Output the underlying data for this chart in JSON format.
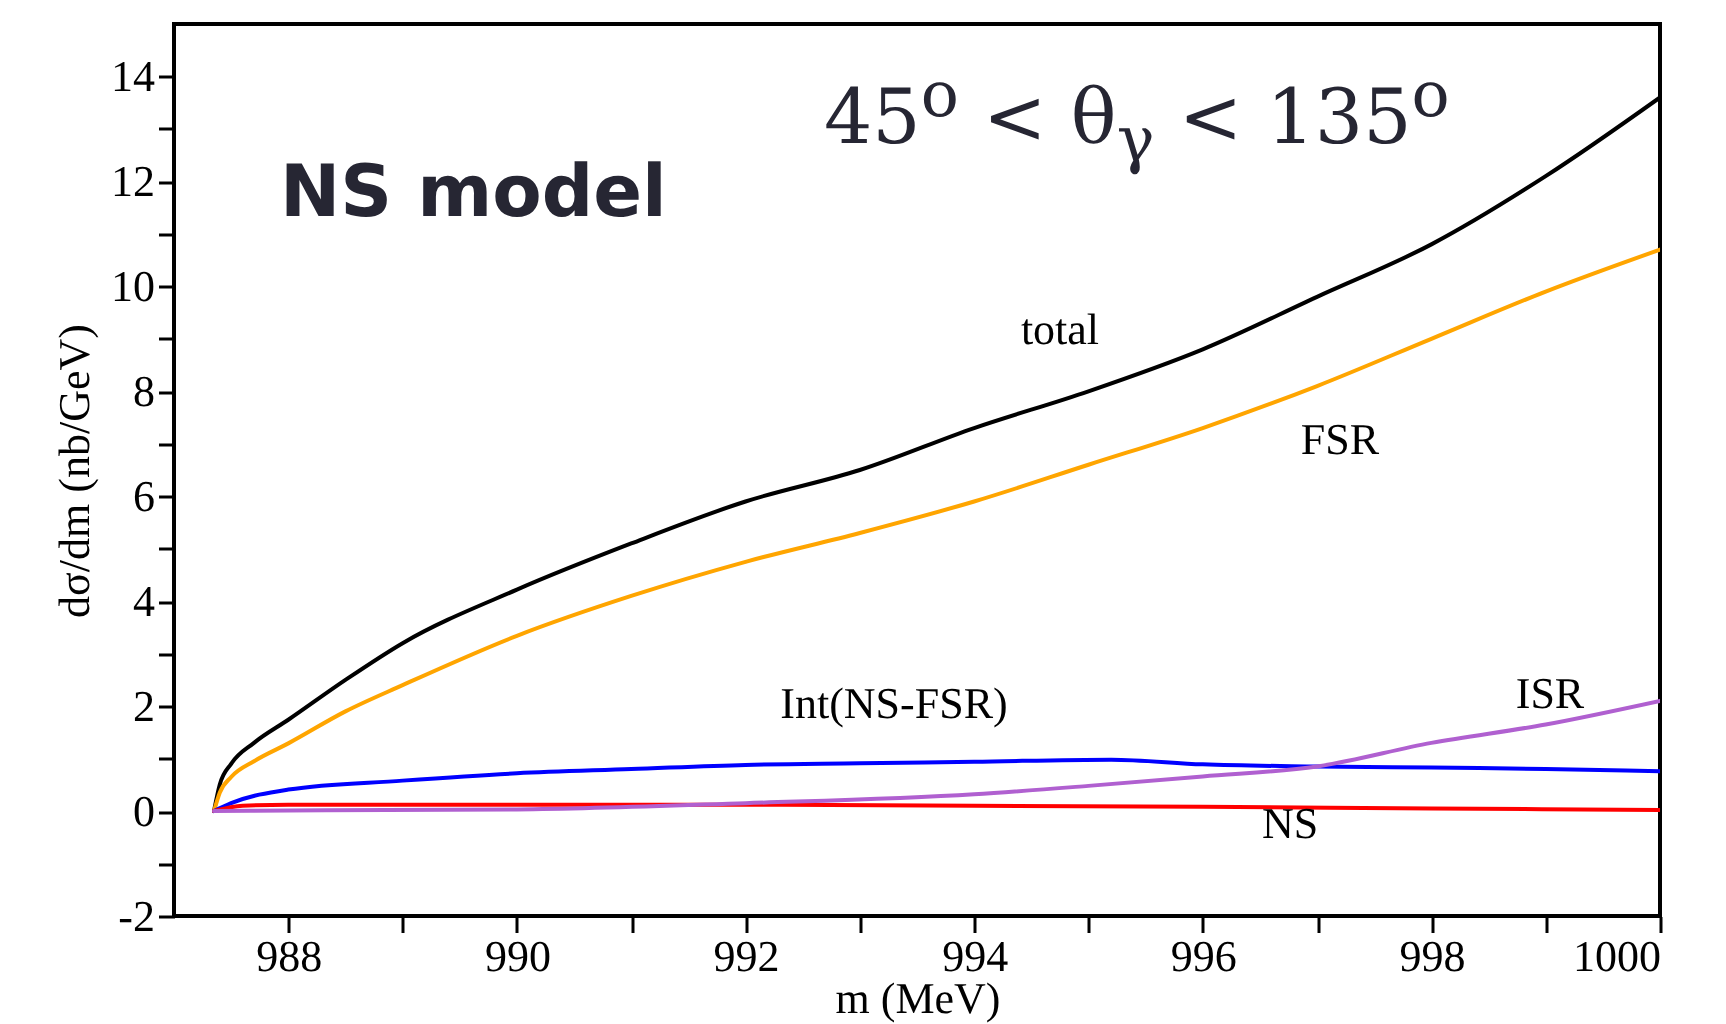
{
  "chart_data": {
    "type": "line",
    "xlabel": "m (MeV)",
    "ylabel": "dσ/dm (nb/GeV)",
    "xlim": [
      987,
      1000
    ],
    "ylim": [
      -2,
      15
    ],
    "xticks": [
      988,
      {
        "value": 989,
        "label": null
      },
      990,
      {
        "value": 991,
        "label": null
      },
      992,
      {
        "value": 993,
        "label": null
      },
      994,
      {
        "value": 995,
        "label": null
      },
      996,
      {
        "value": 997,
        "label": null
      },
      998,
      {
        "value": 999,
        "label": null
      },
      1000
    ],
    "yticks": [
      -2,
      {
        "value": -1,
        "label": null
      },
      0,
      {
        "value": 1,
        "label": null
      },
      2,
      {
        "value": 3,
        "label": null
      },
      4,
      {
        "value": 5,
        "label": null
      },
      6,
      {
        "value": 7,
        "label": null
      },
      8,
      {
        "value": 9,
        "label": null
      },
      10,
      {
        "value": 11,
        "label": null
      },
      12,
      {
        "value": 13,
        "label": null
      },
      14
    ],
    "grid": false,
    "marker": "none",
    "line_style": "solid",
    "series": [
      {
        "color": "#000000",
        "x": [
          987.35,
          987.4,
          987.5,
          987.7,
          988,
          988.5,
          989,
          990,
          991,
          992,
          993,
          994,
          995,
          996,
          997,
          998,
          999,
          1000
        ],
        "values": [
          0,
          0.5,
          0.9,
          1.3,
          1.74,
          2.5,
          3.2,
          4.22,
          5.1,
          5.9,
          6.5,
          7.3,
          8.0,
          8.8,
          9.8,
          10.8,
          12.1,
          13.6
        ]
      },
      {
        "color": "#ffa500",
        "x": [
          987.35,
          987.4,
          987.5,
          987.7,
          988,
          988.5,
          989,
          990,
          991,
          992,
          993,
          994,
          995,
          996,
          997,
          998,
          999,
          1000
        ],
        "values": [
          0,
          0.35,
          0.65,
          0.95,
          1.29,
          1.9,
          2.4,
          3.34,
          4.1,
          4.75,
          5.3,
          5.9,
          6.6,
          7.3,
          8.1,
          9.0,
          9.9,
          10.7
        ]
      },
      {
        "color": "#0000ff",
        "x": [
          987.35,
          987.5,
          988,
          989,
          990,
          991,
          992,
          993,
          994,
          995.2,
          996,
          997,
          998,
          999,
          1000
        ],
        "values": [
          0,
          0.15,
          0.41,
          0.58,
          0.72,
          0.8,
          0.88,
          0.91,
          0.94,
          0.98,
          0.89,
          0.85,
          0.83,
          0.8,
          0.76
        ]
      },
      {
        "color": "#ff0000",
        "x": [
          987.35,
          987.6,
          988,
          990,
          992,
          994,
          996,
          998,
          1000
        ],
        "values": [
          0,
          0.1,
          0.12,
          0.12,
          0.12,
          0.1,
          0.08,
          0.05,
          0.02
        ]
      },
      {
        "color": "#b060d0",
        "x": [
          987.35,
          988,
          990,
          992,
          994,
          995,
          996,
          997,
          998,
          999,
          1000
        ],
        "values": [
          0,
          0.01,
          0.03,
          0.15,
          0.32,
          0.48,
          0.66,
          0.85,
          1.3,
          1.65,
          2.1
        ]
      }
    ],
    "annotations": [
      "NS model",
      "45$^{o}$ < θ$_{γ}$ < 135$^{o}$",
      "total",
      "FSR",
      "ISR",
      "Int(NS-FSR)",
      "NS"
    ]
  }
}
